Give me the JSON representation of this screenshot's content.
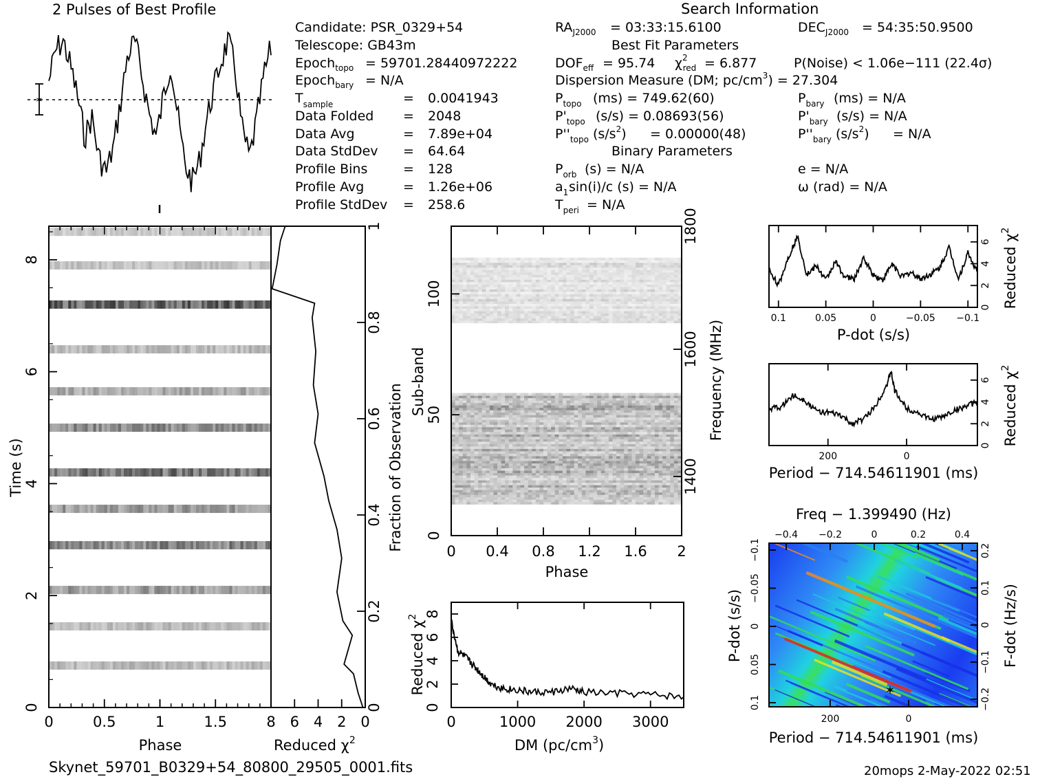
{
  "header": {
    "title": "2 Pulses of Best Profile",
    "search_title": "Search Information",
    "footer_file": "Skynet_59701_B0329+54_80800_29505_0001.fits",
    "footer_stamp": "20mops   2-May-2022 02:51"
  },
  "info": {
    "candidate": "Candidate:   PSR_0329+54",
    "telescope": "Telescope:   GB43m",
    "epoch_topo": "= 59701.28440972222",
    "epoch_bary": "= N/A",
    "t_sample": "0.0041943",
    "data_folded": "2048",
    "data_avg": "7.89e+04",
    "data_stddev": "64.64",
    "profile_bins": "128",
    "profile_avg": "1.26e+06",
    "profile_stddev": "258.6"
  },
  "fit": {
    "ra": "= 03:33:15.6100",
    "dec": "= 54:35:50.9500",
    "best_fit": "Best Fit Parameters",
    "dof_val": "= 95.74",
    "chi2_val": "= 6.877",
    "pnoise": "P(Noise) < 1.06e−111   (22.4σ)",
    "dm_line": "Dispersion Measure (DM; pc/cm",
    "dm_val": ") = 27.304",
    "ptopo": "(ms)  =   749.62(60)",
    "pdtopo": "(s/s)  =   0.08693(56)",
    "pddtopo_val": "=   0.00000(48)",
    "pbary": "(ms) = N/A",
    "pdbary": "(s/s) = N/A",
    "pddbary_val": "= N/A",
    "binary": "Binary Parameters",
    "porb": "(s) = N/A",
    "asini": "sin(i)/c (s) = N/A",
    "tperi": "= N/A",
    "ecc": "e = N/A",
    "omega": "ω (rad) = N/A"
  },
  "axes": {
    "time_label": "Time (s)",
    "phase_label": "Phase",
    "redchi_label": "Reduced χ",
    "frac_label": "Fraction of Observation",
    "subband_label": "Sub-band",
    "freq_label": "Frequency (MHz)",
    "dm_label": "DM (pc/cm",
    "pdot_label": "P-dot (s/s)",
    "period_label": "Period − 714.54611901 (ms)",
    "freq_top_label": "Freq − 1.399490 (Hz)",
    "fdot_label": "F-dot (Hz/s)"
  },
  "chart_data": [
    {
      "type": "line",
      "name": "profile",
      "title": "2 Pulses of Best Profile",
      "x_range": [
        0,
        2
      ],
      "y_shape": "noisy"
    },
    {
      "type": "heatmap",
      "name": "time-vs-phase",
      "xlabel": "Phase",
      "ylabel": "Time (s)",
      "xlim": [
        0,
        2
      ],
      "ylim": [
        0,
        8.6
      ],
      "x_ticks": [
        "0",
        "0.5",
        "1",
        "1.5"
      ],
      "y_ticks": [
        "0",
        "2",
        "4",
        "6",
        "8"
      ],
      "stripe_times": [
        0.75,
        1.45,
        2.1,
        2.9,
        3.55,
        4.2,
        5.0,
        5.65,
        6.4,
        7.2,
        7.9,
        8.5
      ],
      "stripe_intensity": [
        0.45,
        0.45,
        0.65,
        0.8,
        0.65,
        0.9,
        0.75,
        0.55,
        0.45,
        1.0,
        0.4,
        0.35
      ]
    },
    {
      "type": "line",
      "name": "redchi-vs-time",
      "xlabel": "Reduced χ²",
      "ylabel": "Fraction of Observation",
      "xlim": [
        8,
        0
      ],
      "ylim": [
        0,
        1
      ],
      "x_ticks": [
        "8",
        "6",
        "4",
        "2",
        "0"
      ],
      "y_ticks": [
        "0",
        "0.2",
        "0.4",
        "0.6",
        "0.8",
        "1"
      ],
      "points": [
        [
          0.2,
          0
        ],
        [
          0.6,
          0.03
        ],
        [
          1.0,
          0.07
        ],
        [
          1.8,
          0.09
        ],
        [
          1.1,
          0.15
        ],
        [
          1.9,
          0.18
        ],
        [
          2.4,
          0.24
        ],
        [
          2.0,
          0.31
        ],
        [
          2.4,
          0.37
        ],
        [
          3.1,
          0.43
        ],
        [
          3.5,
          0.48
        ],
        [
          4.3,
          0.55
        ],
        [
          4.0,
          0.61
        ],
        [
          4.4,
          0.67
        ],
        [
          4.2,
          0.74
        ],
        [
          4.5,
          0.81
        ],
        [
          4.3,
          0.84
        ],
        [
          7.9,
          0.87
        ],
        [
          7.5,
          0.92
        ],
        [
          7.2,
          0.97
        ],
        [
          6.8,
          1.0
        ]
      ]
    },
    {
      "type": "heatmap",
      "name": "subband-vs-phase",
      "xlabel": "Phase",
      "ylabel": "Sub-band",
      "y2label": "Frequency (MHz)",
      "xlim": [
        0,
        2
      ],
      "ylim": [
        0,
        128
      ],
      "x_ticks": [
        "0",
        "0.4",
        "0.8",
        "1.2",
        "1.6",
        "2"
      ],
      "y_ticks": [
        "0",
        "50",
        "100"
      ],
      "y2_ticks": [
        "1400",
        "1600",
        "1800"
      ],
      "band_low": [
        13,
        59
      ],
      "band_high": [
        88,
        115
      ]
    },
    {
      "type": "line",
      "name": "redchi-vs-dm",
      "xlabel": "DM (pc/cm³)",
      "ylabel": "Reduced χ²",
      "xlim": [
        0,
        3500
      ],
      "ylim": [
        0,
        9
      ],
      "x_ticks": [
        "0",
        "1000",
        "2000",
        "3000"
      ],
      "y_ticks": [
        "0",
        "2",
        "4",
        "6",
        "8"
      ],
      "x": [
        0,
        100,
        200,
        300,
        400,
        500,
        600,
        800,
        1000,
        1200,
        1500,
        1800,
        2000,
        2500,
        3000,
        3500
      ],
      "y": [
        7.4,
        4.8,
        4.4,
        3.8,
        3.2,
        2.6,
        2.0,
        1.6,
        1.5,
        1.3,
        1.3,
        1.6,
        1.3,
        1.2,
        1.1,
        0.9
      ]
    },
    {
      "type": "line",
      "name": "redchi-vs-pdot",
      "xlabel": "P-dot (s/s)",
      "ylabel": "Reduced χ²",
      "xlim": [
        0.11,
        -0.11
      ],
      "ylim": [
        0,
        7.5
      ],
      "x_ticks": [
        "0.1",
        "0.05",
        "0",
        "−0.05",
        "−0.1"
      ],
      "y_ticks": [
        "0",
        "2",
        "4",
        "6"
      ],
      "x": [
        0.11,
        0.1,
        0.09,
        0.08,
        0.07,
        0.06,
        0.05,
        0.04,
        0.03,
        0.02,
        0.01,
        0,
        -0.01,
        -0.02,
        -0.03,
        -0.04,
        -0.05,
        -0.06,
        -0.07,
        -0.08,
        -0.09,
        -0.1,
        -0.11
      ],
      "y": [
        3.5,
        2.0,
        4.5,
        6.5,
        3.0,
        3.8,
        2.5,
        4.2,
        2.8,
        2.6,
        4.5,
        3.0,
        2.5,
        4.0,
        2.8,
        3.2,
        2.6,
        3.0,
        3.6,
        5.5,
        2.6,
        5.0,
        3.2
      ]
    },
    {
      "type": "line",
      "name": "redchi-vs-period",
      "xlabel": "Period − 714.54611901 (ms)",
      "ylabel": "Reduced χ²",
      "xlim": [
        350,
        -180
      ],
      "ylim": [
        0,
        7.5
      ],
      "x_ticks": [
        "200",
        "0"
      ],
      "y_ticks": [
        "0",
        "2",
        "4",
        "6"
      ],
      "x": [
        350,
        320,
        290,
        260,
        230,
        200,
        170,
        140,
        110,
        80,
        50,
        40,
        30,
        0,
        -30,
        -60,
        -90,
        -120,
        -150,
        -180
      ],
      "y": [
        3.4,
        3.5,
        4.6,
        4.2,
        3.2,
        3.0,
        2.8,
        2.0,
        2.4,
        3.6,
        5.6,
        6.8,
        5.0,
        3.4,
        3.0,
        2.4,
        2.6,
        3.2,
        3.6,
        4.0
      ]
    },
    {
      "type": "heatmap",
      "name": "period-pdot-plane",
      "xlabel": "Period − 714.54611901 (ms)",
      "ylabel": "P-dot (s/s)",
      "x2label": "Freq − 1.399490 (Hz)",
      "y2label": "F-dot (Hz/s)",
      "x_ticks": [
        "200",
        "0"
      ],
      "y_ticks": [
        "−0.1",
        "−0.05",
        "0",
        "0.05",
        "0.1"
      ],
      "x2_ticks": [
        "−0.4",
        "−0.2",
        "0",
        "0.2",
        "0.4"
      ],
      "y2_ticks": [
        "0.2",
        "0.1",
        "0",
        "−0.1",
        "−0.2"
      ],
      "best_point": [
        40,
        0.087
      ]
    }
  ]
}
